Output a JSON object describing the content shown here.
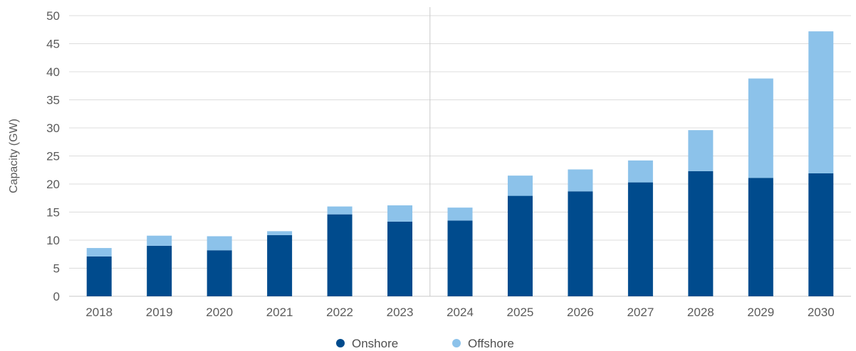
{
  "chart_data": {
    "type": "bar",
    "stacked": true,
    "title": "",
    "xlabel": "",
    "ylabel": "Capacity (GW)",
    "ylim": [
      0,
      50
    ],
    "yticks": [
      0,
      5,
      10,
      15,
      20,
      25,
      30,
      35,
      40,
      45,
      50
    ],
    "grid": true,
    "legend_position": "bottom-center",
    "divider_between": [
      "2023",
      "2024"
    ],
    "categories": [
      "2018",
      "2019",
      "2020",
      "2021",
      "2022",
      "2023",
      "2024",
      "2025",
      "2026",
      "2027",
      "2028",
      "2029",
      "2030"
    ],
    "series": [
      {
        "name": "Onshore",
        "color": "#004b8d",
        "values": [
          7.1,
          9.0,
          8.2,
          10.9,
          14.6,
          13.3,
          13.5,
          17.9,
          18.7,
          20.3,
          22.3,
          21.1,
          21.9
        ]
      },
      {
        "name": "Offshore",
        "color": "#8cc2ea",
        "values": [
          1.5,
          1.8,
          2.5,
          0.7,
          1.4,
          2.9,
          2.3,
          3.6,
          3.9,
          3.9,
          7.3,
          17.7,
          25.3
        ]
      }
    ]
  }
}
